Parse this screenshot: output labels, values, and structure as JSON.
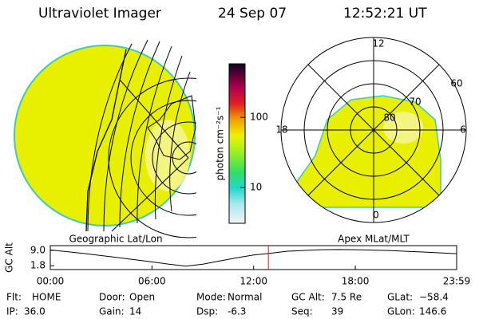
{
  "header": {
    "title": "Ultraviolet Imager",
    "date": "24 Sep 07",
    "time": "12:52:21 UT"
  },
  "geo_panel": {
    "label": "Geographic Lat/Lon"
  },
  "apex_panel": {
    "label": "Apex MLat/MLT",
    "mlt_labels": [
      "12",
      "18",
      "6",
      "0"
    ],
    "mlat_labels": [
      "60",
      "70",
      "80"
    ]
  },
  "colorbar": {
    "label": "photon cm⁻²s⁻¹",
    "log_scale": true,
    "lim": [
      3.1,
      580
    ],
    "ticks": [
      10,
      100
    ]
  },
  "altitude": {
    "ylabel": "GC Alt",
    "ylim": [
      0,
      11.2
    ],
    "yticks": [
      {
        "value": 9.0,
        "label": "9.0"
      },
      1.8
    ],
    "xlim": [
      0,
      23.98
    ],
    "xticks": [
      {
        "value": 0,
        "label": "00:00"
      },
      {
        "value": 6,
        "label": "06:00"
      },
      {
        "value": 12,
        "label": "12:00"
      },
      {
        "value": 18,
        "label": "18:00"
      },
      {
        "value": 23.98,
        "label": "23:59"
      }
    ],
    "x": [
      0,
      2,
      4,
      6,
      7,
      8,
      9,
      10,
      11,
      12,
      12.87,
      14,
      16,
      17,
      18,
      20,
      22,
      23.98
    ],
    "values": [
      9.2,
      7.5,
      5.6,
      3.6,
      2.5,
      1.6,
      2.5,
      4.0,
      5.5,
      6.8,
      7.5,
      8.6,
      9.3,
      9.4,
      9.3,
      8.9,
      8.2,
      7.4
    ],
    "current_time": 12.87,
    "line_color": "#000000",
    "marker_color": "#cc2222"
  },
  "footer": {
    "rows": [
      [
        {
          "label": "Flt:",
          "value": "HOME"
        },
        {
          "label": "Door:",
          "value": "Open"
        },
        {
          "label": "Mode:",
          "value": "Normal"
        },
        {
          "label": "GC Alt:",
          "value": "7.5 Re"
        },
        {
          "label": "GLat:",
          "value": "−58.4"
        }
      ],
      [
        {
          "label": "IP:",
          "value": "36.0"
        },
        {
          "label": "Gain:",
          "value": "14"
        },
        {
          "label": "Dsp:",
          "value": "-6.3"
        },
        {
          "label": "Seq:",
          "value": "39"
        },
        {
          "label": "GLon:",
          "value": "146.6"
        }
      ]
    ]
  }
}
